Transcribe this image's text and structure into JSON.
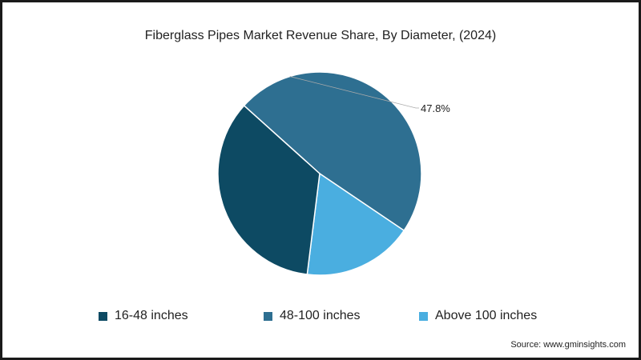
{
  "chart_data": {
    "type": "pie",
    "title": "Fiberglass Pipes Market Revenue Share, By Diameter, (2024)",
    "slices": [
      {
        "label": "48-100 inches",
        "value": 47.8,
        "color": "#2e6f91",
        "data_label": "47.8%"
      },
      {
        "label": "Above 100 inches",
        "value": 17.5,
        "color": "#4aaee0",
        "data_label": ""
      },
      {
        "label": "16-48 inches",
        "value": 34.7,
        "color": "#0d4a63",
        "data_label": ""
      }
    ],
    "legend_order": [
      "16-48 inches",
      "48-100 inches",
      "Above 100 inches"
    ],
    "legend_colors": [
      "#0d4a63",
      "#2e6f91",
      "#4aaee0"
    ],
    "legend_position": "bottom",
    "start_angle_deg": -48
  },
  "source": "Source: www.gminsights.com"
}
